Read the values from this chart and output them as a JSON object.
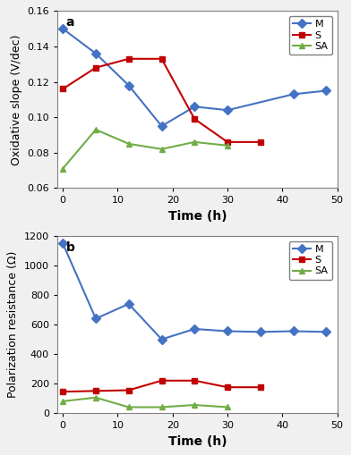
{
  "M_a_x": [
    0,
    6,
    12,
    18,
    24,
    30,
    42,
    48
  ],
  "M_a_y": [
    0.15,
    0.136,
    0.118,
    0.095,
    0.106,
    0.104,
    0.113,
    0.115
  ],
  "S_a_x": [
    0,
    6,
    12,
    18,
    24,
    30,
    36
  ],
  "S_a_y": [
    0.116,
    0.128,
    0.133,
    0.133,
    0.099,
    0.086,
    0.086
  ],
  "SA_a_x": [
    0,
    6,
    12,
    18,
    24,
    30
  ],
  "SA_a_y": [
    0.071,
    0.093,
    0.085,
    0.082,
    0.086,
    0.084
  ],
  "M_b_x": [
    0,
    6,
    12,
    18,
    24,
    30,
    36,
    42,
    48
  ],
  "M_b_y": [
    1150,
    640,
    740,
    500,
    570,
    555,
    550,
    555,
    550
  ],
  "S_b_x": [
    0,
    6,
    12,
    18,
    24,
    30,
    36
  ],
  "S_b_y": [
    145,
    150,
    155,
    220,
    220,
    175,
    175
  ],
  "SA_b_x": [
    0,
    6,
    12,
    18,
    24,
    30
  ],
  "SA_b_y": [
    80,
    105,
    40,
    40,
    55,
    40
  ],
  "color_M": "#4472C4",
  "color_S": "#C00000",
  "color_SA": "#70AD47",
  "ylim_a": [
    0.06,
    0.16
  ],
  "yticks_a": [
    0.06,
    0.08,
    0.1,
    0.12,
    0.14,
    0.16
  ],
  "ylim_b": [
    0,
    1200
  ],
  "yticks_b": [
    0,
    200,
    400,
    600,
    800,
    1000,
    1200
  ],
  "xlim": [
    -1,
    50
  ],
  "xticks": [
    0,
    10,
    20,
    30,
    40,
    50
  ],
  "ylabel_a": "Oxidative slope (V/dec)",
  "ylabel_b": "Polarization resistance (Ω)",
  "xlabel": "Time (h)",
  "label_a": "a",
  "label_b": "b",
  "bg_color": "#f0f0f0",
  "panel_color": "#ffffff"
}
